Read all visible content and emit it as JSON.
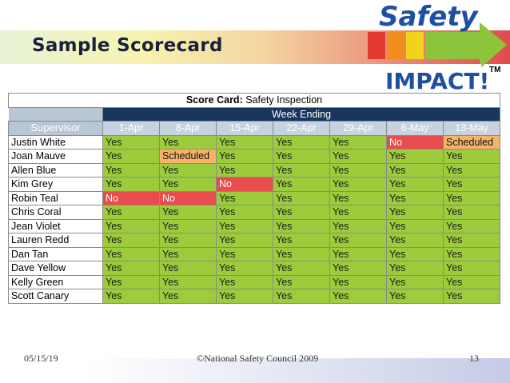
{
  "slide": {
    "title": "Sample Scorecard",
    "logo": {
      "line1": "Safety",
      "line2": "IMPACT!",
      "tm": "TM"
    },
    "footer": {
      "date": "05/15/19",
      "copyright": "©National Safety Council 2009",
      "page": "13"
    }
  },
  "scorecard": {
    "caption_bold": "Score Card:",
    "caption_rest": " Safety Inspection",
    "week_ending_label": "Week Ending",
    "supervisor_label": "Supervisor",
    "weeks": [
      "1-Apr",
      "8-Apr",
      "15-Apr",
      "22-Apr",
      "29-Apr",
      "6-May",
      "13-May"
    ],
    "rows": [
      {
        "name": "Justin White",
        "values": [
          "Yes",
          "Yes",
          "Yes",
          "Yes",
          "Yes",
          "No",
          "Scheduled"
        ]
      },
      {
        "name": "Joan Mauve",
        "values": [
          "Yes",
          "Scheduled",
          "Yes",
          "Yes",
          "Yes",
          "Yes",
          "Yes"
        ]
      },
      {
        "name": "Allen Blue",
        "values": [
          "Yes",
          "Yes",
          "Yes",
          "Yes",
          "Yes",
          "Yes",
          "Yes"
        ]
      },
      {
        "name": "Kim Grey",
        "values": [
          "Yes",
          "Yes",
          "No",
          "Yes",
          "Yes",
          "Yes",
          "Yes"
        ]
      },
      {
        "name": "Robin Teal",
        "values": [
          "No",
          "No",
          "Yes",
          "Yes",
          "Yes",
          "Yes",
          "Yes"
        ]
      },
      {
        "name": "Chris Coral",
        "values": [
          "Yes",
          "Yes",
          "Yes",
          "Yes",
          "Yes",
          "Yes",
          "Yes"
        ]
      },
      {
        "name": "Jean Violet",
        "values": [
          "Yes",
          "Yes",
          "Yes",
          "Yes",
          "Yes",
          "Yes",
          "Yes"
        ]
      },
      {
        "name": "Lauren Redd",
        "values": [
          "Yes",
          "Yes",
          "Yes",
          "Yes",
          "Yes",
          "Yes",
          "Yes"
        ]
      },
      {
        "name": "Dan Tan",
        "values": [
          "Yes",
          "Yes",
          "Yes",
          "Yes",
          "Yes",
          "Yes",
          "Yes"
        ]
      },
      {
        "name": "Dave Yellow",
        "values": [
          "Yes",
          "Yes",
          "Yes",
          "Yes",
          "Yes",
          "Yes",
          "Yes"
        ]
      },
      {
        "name": "Kelly Green",
        "values": [
          "Yes",
          "Yes",
          "Yes",
          "Yes",
          "Yes",
          "Yes",
          "Yes"
        ]
      },
      {
        "name": "Scott Canary",
        "values": [
          "Yes",
          "Yes",
          "Yes",
          "Yes",
          "Yes",
          "Yes",
          "Yes"
        ]
      }
    ],
    "status_colors": {
      "Yes": "#9ccc3c",
      "No": "#e84c4c",
      "Scheduled": "#f5b36a"
    }
  }
}
